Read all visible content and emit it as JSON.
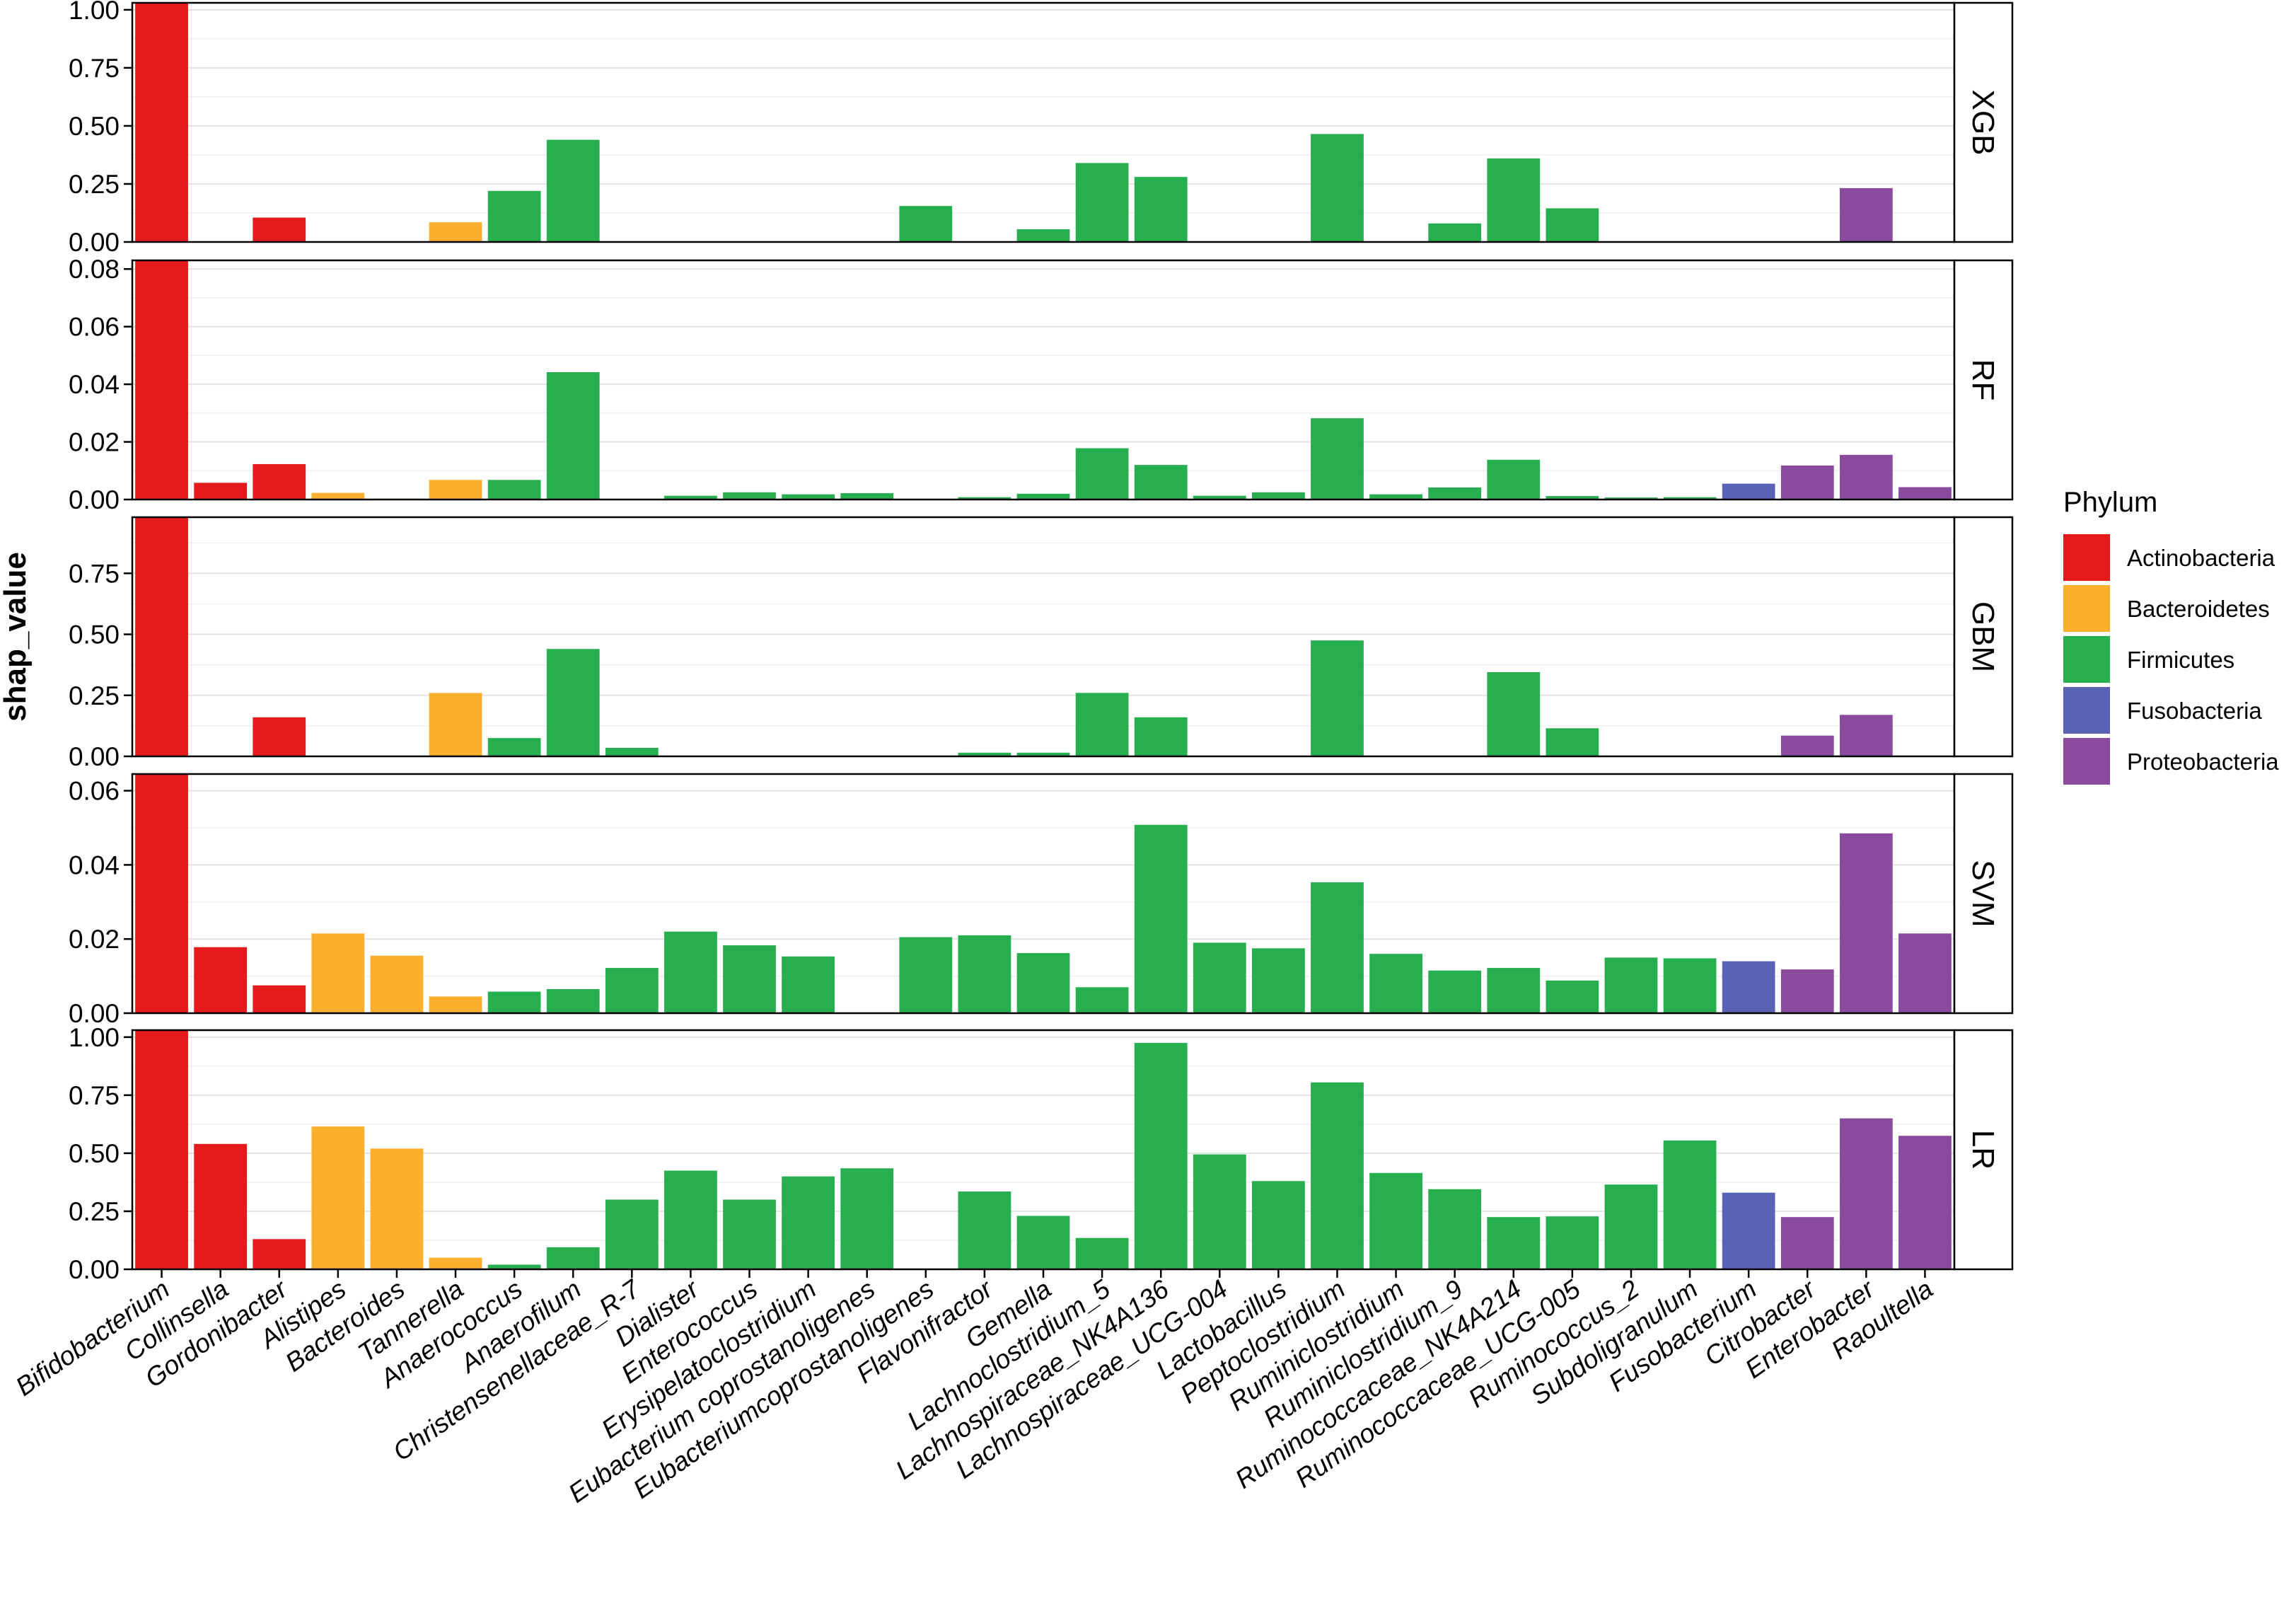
{
  "chart_data": {
    "type": "bar",
    "layout": "faceted-vertical",
    "ylabel": "shap_value",
    "xlabel": "",
    "grid": true,
    "legend": {
      "title": "Phylum",
      "position": "right",
      "entries": [
        {
          "name": "Actinobacteria",
          "color": "#E41A1C"
        },
        {
          "name": "Bacteroidetes",
          "color": "#FBB02D"
        },
        {
          "name": "Firmicutes",
          "color": "#27AE4F"
        },
        {
          "name": "Fusobacteria",
          "color": "#5A62B5"
        },
        {
          "name": "Proteobacteria",
          "color": "#8A4A9E"
        }
      ]
    },
    "categories": [
      "Bifidobacterium",
      "Collinsella",
      "Gordonibacter",
      "Alistipes",
      "Bacteroides",
      "Tannerella",
      "Anaerococcus",
      "Anaerofilum",
      "Christensenellaceae_R-7",
      "Dialister",
      "Enterococcus",
      "Erysipelatoclostridium",
      "Eubacterium coprostanoligenes",
      "Eubacteriumcoprostanoligenes",
      "Flavonifractor",
      "Gemella",
      "Lachnoclostridium_5",
      "Lachnospiraceae_NK4A136",
      "Lachnospiraceae_UCG-004",
      "Lactobacillus",
      "Peptoclostridium",
      "Ruminiclostridium",
      "Ruminiclostridium_9",
      "Ruminococcaceae_NK4A214",
      "Ruminococcaceae_UCG-005",
      "Ruminococcus_2",
      "Subdoligranulum",
      "Fusobacterium",
      "Citrobacter",
      "Enterobacter",
      "Raoultella"
    ],
    "category_phylum": [
      "Actinobacteria",
      "Actinobacteria",
      "Actinobacteria",
      "Bacteroidetes",
      "Bacteroidetes",
      "Bacteroidetes",
      "Firmicutes",
      "Firmicutes",
      "Firmicutes",
      "Firmicutes",
      "Firmicutes",
      "Firmicutes",
      "Firmicutes",
      "Firmicutes",
      "Firmicutes",
      "Firmicutes",
      "Firmicutes",
      "Firmicutes",
      "Firmicutes",
      "Firmicutes",
      "Firmicutes",
      "Firmicutes",
      "Firmicutes",
      "Firmicutes",
      "Firmicutes",
      "Firmicutes",
      "Firmicutes",
      "Fusobacteria",
      "Proteobacteria",
      "Proteobacteria",
      "Proteobacteria"
    ],
    "panels": [
      {
        "name": "XGB",
        "ylim": [
          0,
          1.03
        ],
        "ticks": [
          0,
          0.25,
          0.5,
          0.75,
          1.0
        ],
        "tick_labels": [
          "0.00",
          "0.25",
          "0.50",
          "0.75",
          "1.00"
        ],
        "values": [
          1.04,
          0,
          0.105,
          0,
          0,
          0.085,
          0.22,
          0.44,
          0,
          0,
          0,
          0,
          0,
          0.155,
          0,
          0.055,
          0.34,
          0.28,
          0,
          0,
          0.465,
          0,
          0.08,
          0.36,
          0.145,
          0,
          0,
          0,
          0,
          0.232,
          0
        ]
      },
      {
        "name": "RF",
        "ylim": [
          0,
          0.083
        ],
        "ticks": [
          0,
          0.02,
          0.04,
          0.06,
          0.08
        ],
        "tick_labels": [
          "0.00",
          "0.02",
          "0.04",
          "0.06",
          "0.08"
        ],
        "values": [
          0.085,
          0.0058,
          0.0123,
          0.0023,
          0.0003,
          0.0068,
          0.0068,
          0.0442,
          0,
          0.0013,
          0.0025,
          0.0018,
          0.0022,
          0,
          0.0008,
          0.002,
          0.0178,
          0.012,
          0.0013,
          0.0025,
          0.0282,
          0.0018,
          0.0042,
          0.0138,
          0.0012,
          0.0007,
          0.0008,
          0.0055,
          0.0118,
          0.0155,
          0.0043
        ]
      },
      {
        "name": "GBM",
        "ylim": [
          0,
          0.98
        ],
        "ticks": [
          0,
          0.25,
          0.5,
          0.75
        ],
        "tick_labels": [
          "0.00",
          "0.25",
          "0.50",
          "0.75"
        ],
        "values": [
          1.0,
          0,
          0.16,
          0,
          0,
          0.26,
          0.075,
          0.44,
          0.035,
          0,
          0,
          0,
          0,
          0,
          0.015,
          0.015,
          0.26,
          0.16,
          0,
          0,
          0.475,
          0,
          0,
          0.345,
          0.115,
          0,
          0,
          0,
          0.085,
          0.17,
          0
        ]
      },
      {
        "name": "SVM",
        "ylim": [
          0,
          0.0645
        ],
        "ticks": [
          0,
          0.02,
          0.04,
          0.06
        ],
        "tick_labels": [
          "0.00",
          "0.02",
          "0.04",
          "0.06"
        ],
        "values": [
          0.066,
          0.0178,
          0.0075,
          0.0215,
          0.0155,
          0.0045,
          0.0058,
          0.0065,
          0.0122,
          0.022,
          0.0183,
          0.0153,
          0,
          0.0205,
          0.021,
          0.0162,
          0.007,
          0.0508,
          0.019,
          0.0175,
          0.0353,
          0.016,
          0.0115,
          0.0122,
          0.0088,
          0.015,
          0.0148,
          0.014,
          0.0118,
          0.0485,
          0.0215
        ]
      },
      {
        "name": "LR",
        "ylim": [
          0,
          1.03
        ],
        "ticks": [
          0,
          0.25,
          0.5,
          0.75,
          1.0
        ],
        "tick_labels": [
          "0.00",
          "0.25",
          "0.50",
          "0.75",
          "1.00"
        ],
        "values": [
          1.04,
          0.54,
          0.13,
          0.615,
          0.52,
          0.05,
          0.02,
          0.095,
          0.3,
          0.425,
          0.3,
          0.4,
          0.435,
          0,
          0.335,
          0.23,
          0.135,
          0.975,
          0.495,
          0.38,
          0.805,
          0.415,
          0.345,
          0.225,
          0.228,
          0.365,
          0.555,
          0.33,
          0.225,
          0.65,
          0.575
        ]
      }
    ]
  }
}
